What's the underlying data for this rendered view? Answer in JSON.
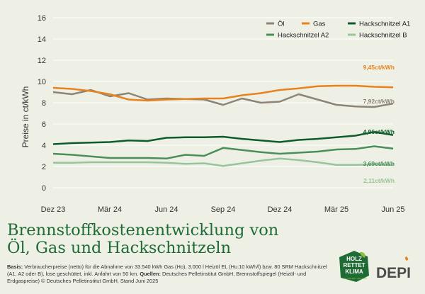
{
  "chart_data": {
    "type": "line",
    "title": "",
    "ylabel": "Preise in ct/kWh",
    "xlabel": "",
    "ylim": [
      0,
      16
    ],
    "yticks": [
      0,
      2,
      4,
      6,
      8,
      10,
      12,
      14,
      16
    ],
    "grid": true,
    "legend_position": "top-right",
    "xtick_labels": [
      "Dez 23",
      "Mär 24",
      "Jun 24",
      "Sep 24",
      "Dez 24",
      "Mär 25",
      "Jun 25"
    ],
    "x": [
      "Dez 23",
      "Jan 24",
      "Feb 24",
      "Mär 24",
      "Apr 24",
      "Mai 24",
      "Jun 24",
      "Jul 24",
      "Aug 24",
      "Sep 24",
      "Okt 24",
      "Nov 24",
      "Dez 24",
      "Jan 25",
      "Feb 25",
      "Mär 25",
      "Apr 25",
      "Mai 25",
      "Jun 25"
    ],
    "series": [
      {
        "name": "Öl",
        "color": "#8c8476",
        "end_label": "7,92ct/kWh",
        "values": [
          9.0,
          8.8,
          9.2,
          8.6,
          8.9,
          8.3,
          8.4,
          8.35,
          8.3,
          7.8,
          8.4,
          8.0,
          8.1,
          8.8,
          8.3,
          7.8,
          7.65,
          7.6,
          7.92
        ]
      },
      {
        "name": "Gas",
        "color": "#e8821e",
        "end_label": "9,45ct/kWh",
        "values": [
          9.4,
          9.3,
          9.1,
          8.8,
          8.3,
          8.2,
          8.3,
          8.35,
          8.4,
          8.4,
          8.7,
          8.9,
          9.2,
          9.35,
          9.55,
          9.6,
          9.6,
          9.5,
          9.45
        ]
      },
      {
        "name": "Hackschnitzel A1",
        "color": "#0e5c2a",
        "end_label": "4,96ct/kWh",
        "values": [
          4.1,
          4.2,
          4.25,
          4.3,
          4.45,
          4.4,
          4.7,
          4.75,
          4.75,
          4.8,
          4.6,
          4.45,
          4.3,
          4.5,
          4.6,
          4.75,
          4.9,
          5.25,
          4.96
        ]
      },
      {
        "name": "Hackschnitzel A2",
        "color": "#4a8f5a",
        "end_label": "3,69ct/kWh",
        "values": [
          3.2,
          3.1,
          2.95,
          2.8,
          2.8,
          2.8,
          2.75,
          3.1,
          3.0,
          3.75,
          3.55,
          3.35,
          3.2,
          3.3,
          3.4,
          3.6,
          3.65,
          3.9,
          3.69
        ]
      },
      {
        "name": "Hackschnitzel B",
        "color": "#98c49a",
        "end_label": "2,11ct/kWh",
        "values": [
          2.35,
          2.35,
          2.4,
          2.4,
          2.4,
          2.4,
          2.35,
          2.25,
          2.3,
          2.05,
          2.3,
          2.55,
          2.75,
          2.6,
          2.4,
          2.15,
          2.15,
          2.2,
          2.11
        ]
      }
    ]
  },
  "page": {
    "title_line1": "Brennstoffkostenentwicklung von",
    "title_line2": "Öl, Gas und Hackschnitzeln",
    "footnote": {
      "basis_label": "Basis:",
      "basis_text": " Verbraucherpreise (netto) für die Abnahme von 33.540 kWh Gas (Ho), 3.000 l Heizöl EL (Hu:10 kWh/l) bzw. 80 SRM Hackschnitzel (A1, A2 oder B), lose geschüttet, inkl. Anfahrt von 50 km.",
      "sources_label": "Quellen:",
      "sources_text": " Deutsches Pelletinstitut GmbH, Brennstoffspiegel (Heizöl- und Erdgaspreise) © Deutsches Pelletinstitut GmbH, Stand Juni 2025"
    },
    "logo_hrk_lines": [
      "HOLZ",
      "RETTET",
      "KLIMA"
    ],
    "logo_hrk_sub": "EIN PROJEKT DES DEPI",
    "logo_depi_text": "DEPI"
  },
  "colors": {
    "background": "#eef0e6",
    "title": "#1e6b34",
    "grid": "#ffffff"
  }
}
